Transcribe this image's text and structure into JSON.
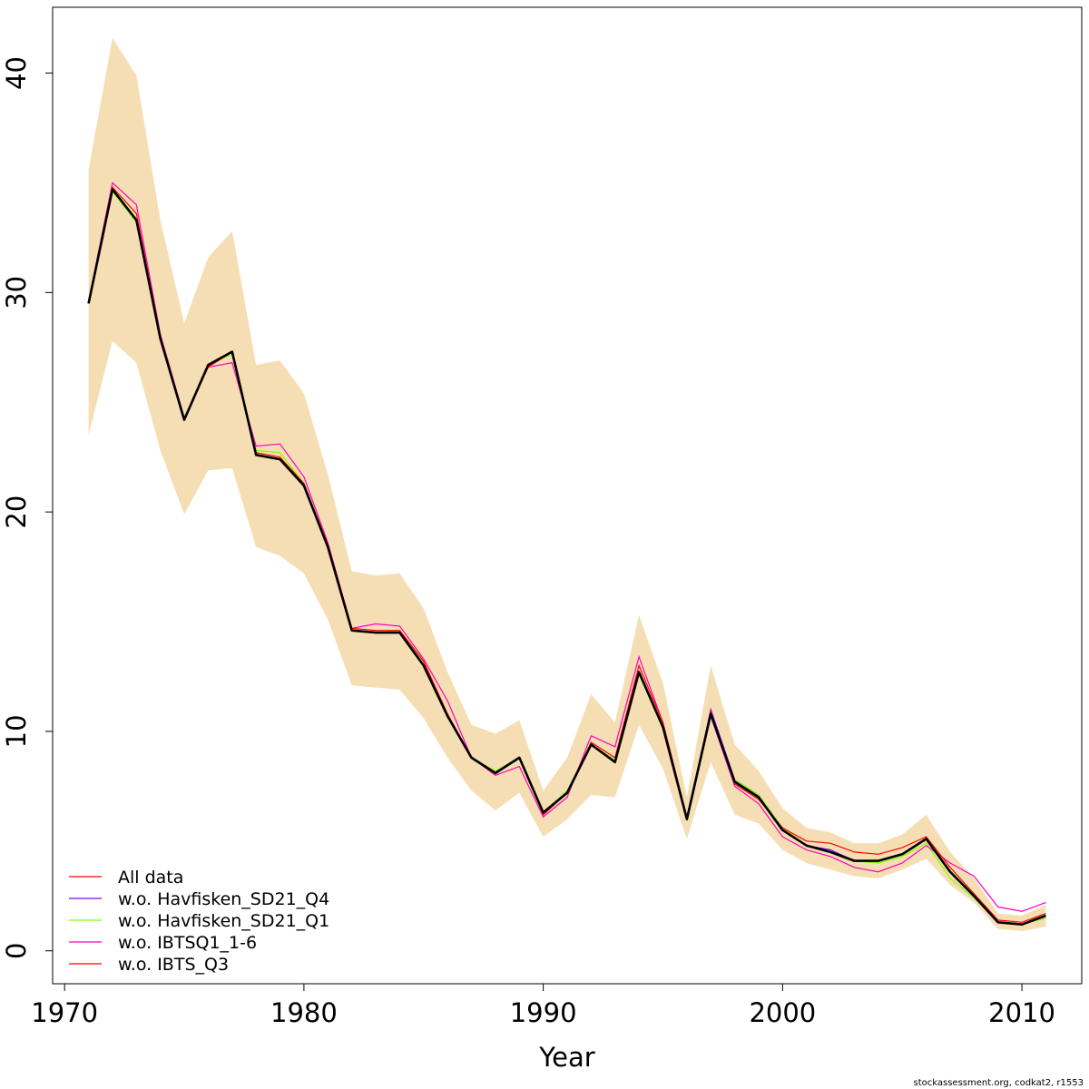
{
  "chart_data": {
    "type": "line",
    "title": "",
    "xlabel": "Year",
    "ylabel": "",
    "xlim": [
      1969.5,
      2012.5
    ],
    "ylim": [
      -1.5,
      43.0
    ],
    "x_ticks": [
      1970,
      1980,
      1990,
      2000,
      2010
    ],
    "y_ticks": [
      0,
      10,
      20,
      30,
      40
    ],
    "grid": false,
    "legend_position": "bottom-left",
    "x": [
      1971,
      1972,
      1973,
      1974,
      1975,
      1976,
      1977,
      1978,
      1979,
      1980,
      1981,
      1982,
      1983,
      1984,
      1985,
      1986,
      1987,
      1988,
      1989,
      1990,
      1991,
      1992,
      1993,
      1994,
      1995,
      1996,
      1997,
      1998,
      1999,
      2000,
      2001,
      2002,
      2003,
      2004,
      2005,
      2006,
      2007,
      2008,
      2009,
      2010,
      2011
    ],
    "band": {
      "color": "#F5DEB3",
      "lower": [
        23.5,
        27.8,
        26.8,
        22.8,
        19.9,
        21.9,
        22.0,
        18.4,
        18.0,
        17.2,
        15.1,
        12.1,
        12.0,
        11.9,
        10.6,
        8.8,
        7.3,
        6.4,
        7.2,
        5.2,
        6.0,
        7.1,
        7.0,
        10.3,
        8.3,
        5.1,
        8.6,
        6.2,
        5.8,
        4.6,
        4.0,
        3.7,
        3.4,
        3.3,
        3.7,
        4.2,
        3.0,
        2.2,
        1.0,
        0.9,
        1.1
      ],
      "upper": [
        35.6,
        41.6,
        39.9,
        33.3,
        28.6,
        31.6,
        32.8,
        26.7,
        26.9,
        25.4,
        21.7,
        17.3,
        17.1,
        17.2,
        15.6,
        12.7,
        10.3,
        9.9,
        10.5,
        7.3,
        8.8,
        11.7,
        10.4,
        15.3,
        12.2,
        7.0,
        13.0,
        9.4,
        8.2,
        6.5,
        5.6,
        5.4,
        4.9,
        4.9,
        5.3,
        6.2,
        4.5,
        3.3,
        1.7,
        1.6,
        2.1
      ]
    },
    "main_line": {
      "color": "#000000",
      "values": [
        29.5,
        34.7,
        33.3,
        27.9,
        24.2,
        26.7,
        27.3,
        22.6,
        22.4,
        21.2,
        18.4,
        14.6,
        14.5,
        14.5,
        13.0,
        10.7,
        8.8,
        8.1,
        8.8,
        6.3,
        7.2,
        9.4,
        8.6,
        12.7,
        10.2,
        6.0,
        10.8,
        7.7,
        7.0,
        5.5,
        4.8,
        4.5,
        4.1,
        4.1,
        4.4,
        5.1,
        3.6,
        2.5,
        1.3,
        1.2,
        1.6
      ]
    },
    "series": [
      {
        "name": "All data",
        "color": "#FF0000",
        "values": [
          29.5,
          34.7,
          33.3,
          27.9,
          24.2,
          26.7,
          27.3,
          22.6,
          22.4,
          21.2,
          18.4,
          14.6,
          14.5,
          14.5,
          13.0,
          10.7,
          8.8,
          8.1,
          8.8,
          6.3,
          7.2,
          9.4,
          8.6,
          12.7,
          10.2,
          6.0,
          10.8,
          7.7,
          7.0,
          5.5,
          4.8,
          4.5,
          4.1,
          4.1,
          4.4,
          5.1,
          3.6,
          2.5,
          1.3,
          1.2,
          1.6
        ]
      },
      {
        "name": "w.o. Havfisken_SD21_Q4",
        "color": "#8000FF",
        "values": [
          29.5,
          34.7,
          33.3,
          27.9,
          24.2,
          26.7,
          27.3,
          22.6,
          22.4,
          21.2,
          18.4,
          14.6,
          14.5,
          14.5,
          13.0,
          10.7,
          8.8,
          8.1,
          8.8,
          6.3,
          7.2,
          9.4,
          8.6,
          12.7,
          10.2,
          6.0,
          11.0,
          7.8,
          7.1,
          5.5,
          4.8,
          4.6,
          4.1,
          4.1,
          4.4,
          5.1,
          3.6,
          2.5,
          1.3,
          1.2,
          1.6
        ]
      },
      {
        "name": "w.o. Havfisken_SD21_Q1",
        "color": "#80FF00",
        "values": [
          29.5,
          34.6,
          33.2,
          27.9,
          24.2,
          26.7,
          27.2,
          22.8,
          22.7,
          21.3,
          18.5,
          14.6,
          14.5,
          14.6,
          13.1,
          10.7,
          8.8,
          8.2,
          8.8,
          6.3,
          7.3,
          9.4,
          8.7,
          12.6,
          10.1,
          6.0,
          10.7,
          7.8,
          7.1,
          5.6,
          4.8,
          4.5,
          4.1,
          4.0,
          4.3,
          4.9,
          3.3,
          2.4,
          1.3,
          1.2,
          1.5
        ]
      },
      {
        "name": "w.o. IBTSQ1_1-6",
        "color": "#FF00C0",
        "values": [
          29.6,
          35.0,
          34.0,
          28.1,
          24.3,
          26.6,
          26.8,
          23.0,
          23.1,
          21.6,
          18.6,
          14.7,
          14.9,
          14.8,
          13.3,
          11.4,
          8.8,
          8.0,
          8.4,
          6.1,
          7.0,
          9.8,
          9.3,
          13.4,
          10.4,
          6.1,
          10.7,
          7.5,
          6.7,
          5.2,
          4.6,
          4.3,
          3.8,
          3.6,
          4.0,
          4.8,
          4.0,
          3.4,
          2.0,
          1.8,
          2.2
        ]
      },
      {
        "name": "w.o. IBTS_Q3",
        "color": "#FF0000",
        "values": [
          29.5,
          34.8,
          33.6,
          28.0,
          24.2,
          26.6,
          27.3,
          22.7,
          22.5,
          21.3,
          18.5,
          14.7,
          14.6,
          14.6,
          13.2,
          10.8,
          8.8,
          8.1,
          8.8,
          6.2,
          7.2,
          9.5,
          8.8,
          13.0,
          10.4,
          6.1,
          10.9,
          7.6,
          6.9,
          5.6,
          5.0,
          4.9,
          4.5,
          4.4,
          4.7,
          5.2,
          3.8,
          2.6,
          1.4,
          1.3,
          1.7
        ]
      }
    ],
    "credit": "stockassessment.org, codkat2, r1553"
  }
}
